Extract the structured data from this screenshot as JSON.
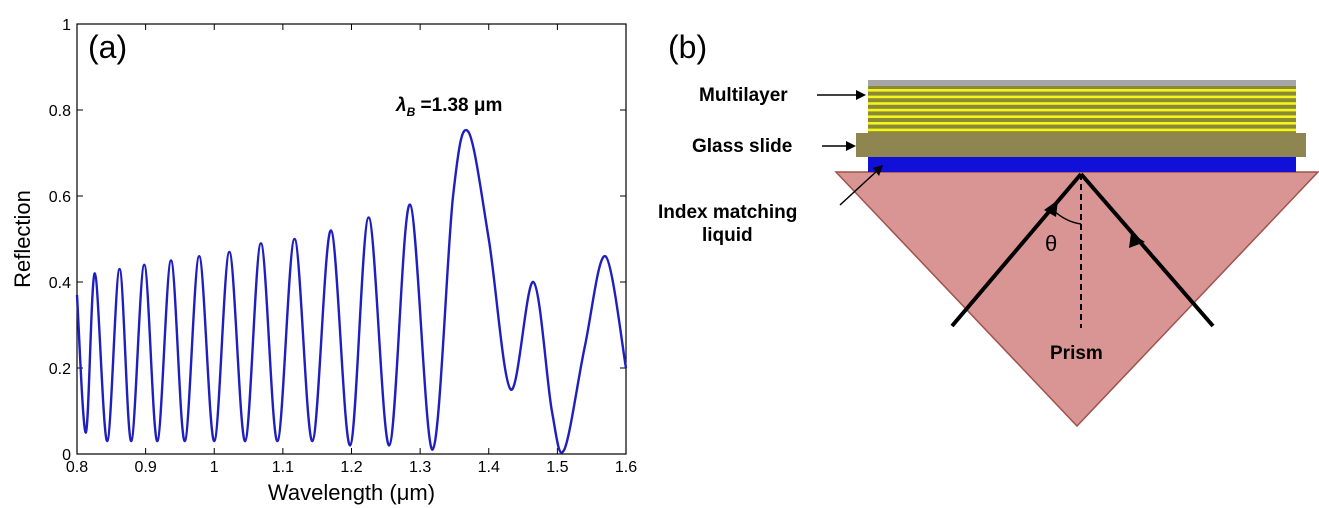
{
  "chart_data": {
    "type": "line",
    "panel_label": "(a)",
    "xlabel": "Wavelength (μm)",
    "ylabel": "Reflection",
    "xlim": [
      0.8,
      1.6
    ],
    "ylim": [
      0,
      1
    ],
    "x_ticks": [
      "0.8",
      "0.9",
      "1",
      "1.1",
      "1.2",
      "1.3",
      "1.4",
      "1.5",
      "1.6"
    ],
    "y_ticks": [
      "0",
      "0.2",
      "0.4",
      "0.6",
      "0.8",
      "1"
    ],
    "grid": false,
    "annotation": {
      "symbol": "λ",
      "subscript": "B",
      "text": " =1.38 μm"
    },
    "series": [
      {
        "color": "#1f1fbf",
        "points": [
          [
            0.8,
            0.37
          ],
          [
            0.813,
            0.05
          ],
          [
            0.826,
            0.42
          ],
          [
            0.844,
            0.03
          ],
          [
            0.862,
            0.43
          ],
          [
            0.879,
            0.03
          ],
          [
            0.898,
            0.44
          ],
          [
            0.917,
            0.03
          ],
          [
            0.937,
            0.45
          ],
          [
            0.957,
            0.03
          ],
          [
            0.978,
            0.46
          ],
          [
            1.0,
            0.03
          ],
          [
            1.022,
            0.47
          ],
          [
            1.045,
            0.03
          ],
          [
            1.068,
            0.49
          ],
          [
            1.092,
            0.03
          ],
          [
            1.117,
            0.5
          ],
          [
            1.143,
            0.03
          ],
          [
            1.17,
            0.52
          ],
          [
            1.198,
            0.02
          ],
          [
            1.225,
            0.55
          ],
          [
            1.255,
            0.02
          ],
          [
            1.285,
            0.58
          ],
          [
            1.318,
            0.01
          ],
          [
            1.348,
            0.6
          ],
          [
            1.37,
            0.75
          ],
          [
            1.4,
            0.5
          ],
          [
            1.432,
            0.15
          ],
          [
            1.465,
            0.4
          ],
          [
            1.492,
            0.1
          ],
          [
            1.51,
            0.01
          ],
          [
            1.54,
            0.25
          ],
          [
            1.57,
            0.46
          ],
          [
            1.6,
            0.2
          ]
        ]
      }
    ]
  },
  "diagram": {
    "panel_label": "(b)",
    "multilayer_label": "Multilayer",
    "glass_slide_label": "Glass slide",
    "index_matching_label_line1": "Index matching",
    "index_matching_label_line2": "liquid",
    "prism_label": "Prism",
    "theta_label": "θ",
    "colors": {
      "multilayer_top": "#a6a6a6",
      "multilayer_stripe_dark": "#8a8a36",
      "multilayer_stripe_yellow": "#f5f51e",
      "glass_slide": "#8e8550",
      "index_liquid": "#1010d8",
      "prism_fill": "#d99594",
      "prism_stroke": "#a0524d"
    }
  }
}
